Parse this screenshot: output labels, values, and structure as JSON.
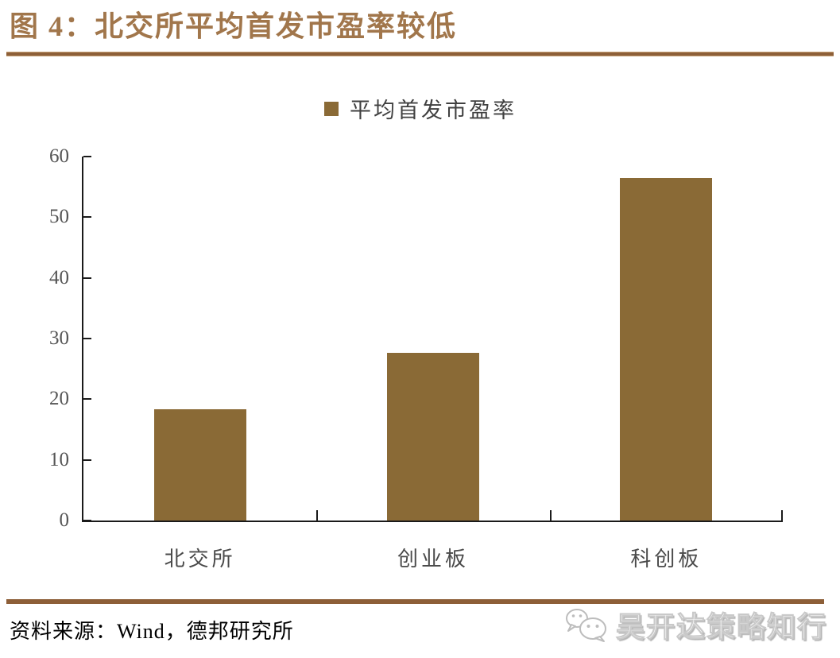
{
  "figure": {
    "title": "图 4：北交所平均首发市盈率较低",
    "source": "资料来源：Wind，德邦研究所",
    "watermark": {
      "icon": "wechat-icon",
      "text": "吴开达策略知行"
    }
  },
  "chart_data": {
    "type": "bar",
    "title": "图 4：北交所平均首发市盈率较低",
    "legend": [
      "平均首发市盈率"
    ],
    "legend_position": "top-center",
    "categories": [
      "北交所",
      "创业板",
      "科创板"
    ],
    "values": [
      18.4,
      27.6,
      56.4
    ],
    "xlabel": "",
    "ylabel": "",
    "ylim": [
      0,
      60
    ],
    "yticks": [
      0,
      10,
      20,
      30,
      40,
      50,
      60
    ],
    "grid": false,
    "bar_color": "#8A6A36"
  },
  "colors": {
    "title_text": "#A1764B",
    "rule": "#8D5F38",
    "bar": "#8A6A36",
    "axis": "#1A1A1A",
    "ytick_label": "#555555",
    "category_label": "#4A4A4A",
    "legend_text": "#404040",
    "source_text": "#000000"
  }
}
